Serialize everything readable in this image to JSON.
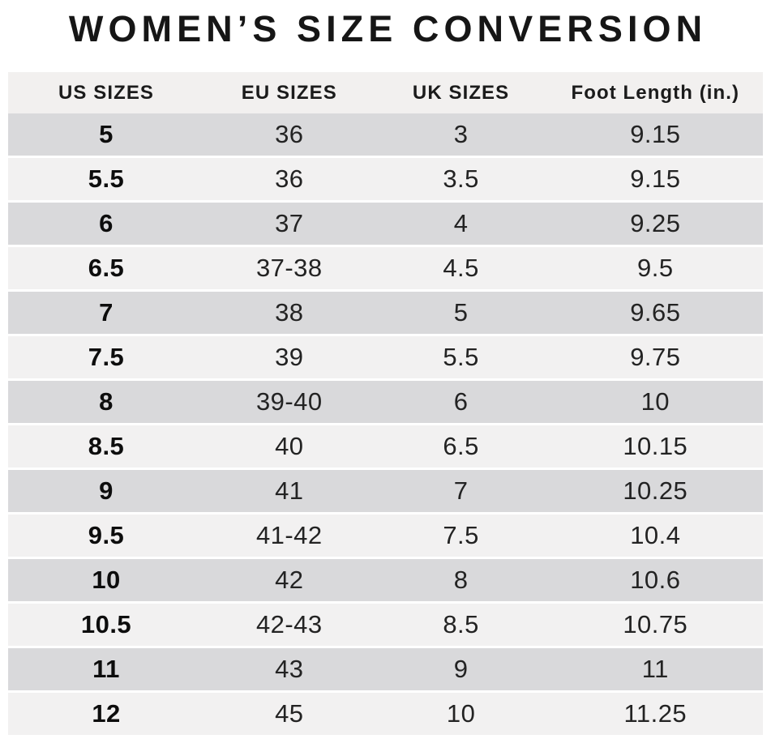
{
  "chart_data": {
    "type": "table",
    "title": "WOMEN’S SIZE CONVERSION",
    "columns": [
      "US SIZES",
      "EU SIZES",
      "UK SIZES",
      "Foot Length (in.)"
    ],
    "rows": [
      [
        "5",
        "36",
        "3",
        "9.15"
      ],
      [
        "5.5",
        "36",
        "3.5",
        "9.15"
      ],
      [
        "6",
        "37",
        "4",
        "9.25"
      ],
      [
        "6.5",
        "37-38",
        "4.5",
        "9.5"
      ],
      [
        "7",
        "38",
        "5",
        "9.65"
      ],
      [
        "7.5",
        "39",
        "5.5",
        "9.75"
      ],
      [
        "8",
        "39-40",
        "6",
        "10"
      ],
      [
        "8.5",
        "40",
        "6.5",
        "10.15"
      ],
      [
        "9",
        "41",
        "7",
        "10.25"
      ],
      [
        "9.5",
        "41-42",
        "7.5",
        "10.4"
      ],
      [
        "10",
        "42",
        "8",
        "10.6"
      ],
      [
        "10.5",
        "42-43",
        "8.5",
        "10.75"
      ],
      [
        "11",
        "43",
        "9",
        "11"
      ],
      [
        "12",
        "45",
        "10",
        "11.25"
      ]
    ],
    "layout": {
      "row_striping": "first data row dark, alternating",
      "legend": "none",
      "grid": "horizontal white separators between rows"
    }
  },
  "colors": {
    "background": "#ffffff",
    "header_bg": "#f2f0ef",
    "row_dark": "#d9d9db",
    "row_light": "#f2f1f1",
    "title_text": "#161616",
    "body_text": "#232323"
  }
}
